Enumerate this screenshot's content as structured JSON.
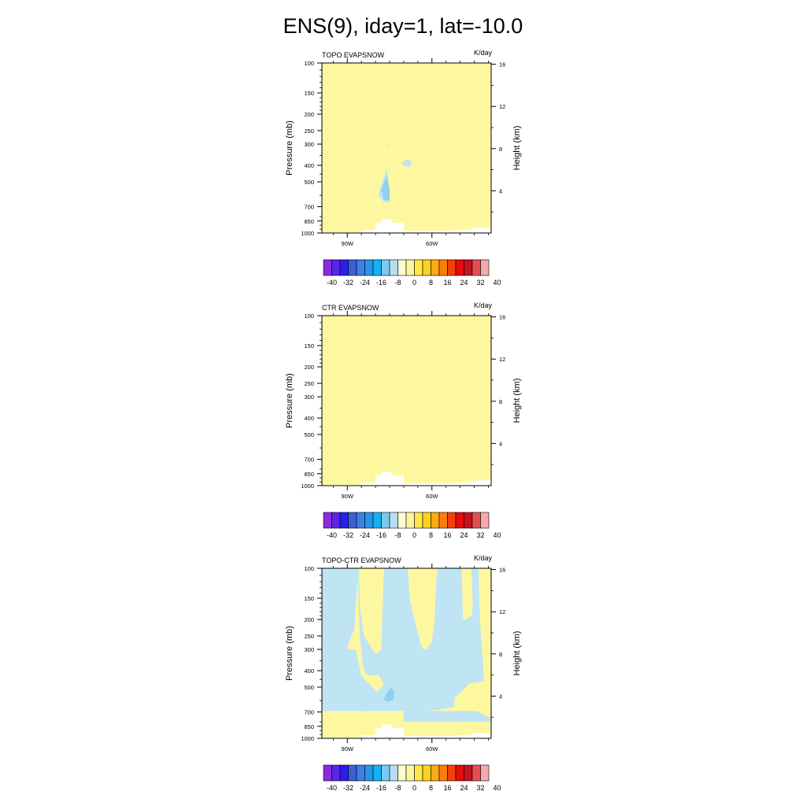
{
  "figure": {
    "title": "ENS(9), iday=1, lat=-10.0"
  },
  "colors": {
    "background": "#ffffff",
    "zero_fill": "#fdf8a0",
    "neg_small_fill": "#bfe4f4",
    "neg_med_fill": "#8fd0ee",
    "axis": "#000000"
  },
  "colorbar": {
    "colors": [
      "#8a2be2",
      "#5a25e8",
      "#2a1ef0",
      "#3c5fd8",
      "#3d80e6",
      "#2596ee",
      "#12b2f2",
      "#7ccaf0",
      "#b4dff2",
      "#fdfbd2",
      "#fdf4a0",
      "#fde84a",
      "#fdd11c",
      "#fdaa14",
      "#fb7d0c",
      "#f5400a",
      "#e40c0c",
      "#c8101e",
      "#e05050",
      "#f4aaaa"
    ],
    "tick_labels": [
      "-40",
      "-32",
      "-24",
      "-16",
      "-8",
      "0",
      "8",
      "16",
      "24",
      "32",
      "40"
    ]
  },
  "chart_data": [
    {
      "type": "heatmap",
      "title": "TOPO EVAPSNOW",
      "units": "K/day",
      "ylabel": "Pressure (mb)",
      "ylabel_right": "Height (km)",
      "x_tick_labels": [
        "90W",
        "60W"
      ],
      "x_ticks": [
        -95,
        -65
      ],
      "xlim": [
        -104,
        -44
      ],
      "y_tick_labels": [
        "100",
        "150",
        "200",
        "250",
        "300",
        "400",
        "500",
        "700",
        "850",
        "1000"
      ],
      "y_ticks": [
        100,
        150,
        200,
        250,
        300,
        400,
        500,
        700,
        850,
        1000
      ],
      "ylim": [
        1000,
        100
      ],
      "y_scale": "log",
      "right_tick_labels": [
        "4",
        "8",
        "12",
        "16"
      ],
      "right_ticks": [
        4,
        8,
        12,
        16
      ],
      "field": "0 K/day (pale yellow) nearly everywhere; small negative (-4 to 0) patches near 80W, 400-650 mb and near 74W, 380 mb",
      "regions": [
        {
          "level": "neg_small",
          "points": [
            [
              -81,
              420
            ],
            [
              -80,
              560
            ],
            [
              -80,
              660
            ],
            [
              -82,
              660
            ],
            [
              -84,
              600
            ],
            [
              -83,
              520
            ]
          ]
        },
        {
          "level": "neg_med",
          "points": [
            [
              -81,
              460
            ],
            [
              -80,
              560
            ],
            [
              -80,
              640
            ],
            [
              -82,
              640
            ],
            [
              -83,
              560
            ]
          ]
        },
        {
          "level": "neg_small",
          "points": [
            [
              -76,
              390
            ],
            [
              -74,
              370
            ],
            [
              -72,
              380
            ],
            [
              -73,
              410
            ],
            [
              -75,
              400
            ]
          ]
        },
        {
          "level": "neg_small",
          "points": [
            [
              -80.5,
              295
            ],
            [
              -79.8,
              300
            ],
            [
              -80.5,
              310
            ]
          ]
        }
      ],
      "terrain": [
        [
          -104,
          1000
        ],
        [
          -104,
          990
        ],
        [
          -90,
          990
        ],
        [
          -90,
          960
        ],
        [
          -85,
          960
        ],
        [
          -85,
          870
        ],
        [
          -83,
          870
        ],
        [
          -83,
          830
        ],
        [
          -79,
          830
        ],
        [
          -79,
          870
        ],
        [
          -75,
          870
        ],
        [
          -75,
          970
        ],
        [
          -57,
          970
        ],
        [
          -57,
          960
        ],
        [
          -51,
          960
        ],
        [
          -51,
          930
        ],
        [
          -44,
          930
        ],
        [
          -44,
          1000
        ]
      ]
    },
    {
      "type": "heatmap",
      "title": "CTR EVAPSNOW",
      "units": "K/day",
      "ylabel": "Pressure (mb)",
      "ylabel_right": "Height (km)",
      "x_tick_labels": [
        "90W",
        "60W"
      ],
      "x_ticks": [
        -95,
        -65
      ],
      "xlim": [
        -104,
        -44
      ],
      "y_tick_labels": [
        "100",
        "150",
        "200",
        "250",
        "300",
        "400",
        "500",
        "700",
        "850",
        "1000"
      ],
      "y_ticks": [
        100,
        150,
        200,
        250,
        300,
        400,
        500,
        700,
        850,
        1000
      ],
      "ylim": [
        1000,
        100
      ],
      "y_scale": "log",
      "right_tick_labels": [
        "4",
        "8",
        "12",
        "16"
      ],
      "right_ticks": [
        4,
        8,
        12,
        16
      ],
      "field": "0 K/day (pale yellow) everywhere",
      "regions": [],
      "terrain": [
        [
          -104,
          1000
        ],
        [
          -104,
          990
        ],
        [
          -90,
          990
        ],
        [
          -90,
          960
        ],
        [
          -85,
          960
        ],
        [
          -85,
          870
        ],
        [
          -83,
          870
        ],
        [
          -83,
          830
        ],
        [
          -79,
          830
        ],
        [
          -79,
          870
        ],
        [
          -75,
          870
        ],
        [
          -75,
          970
        ],
        [
          -57,
          970
        ],
        [
          -57,
          960
        ],
        [
          -51,
          960
        ],
        [
          -51,
          930
        ],
        [
          -44,
          930
        ],
        [
          -44,
          1000
        ]
      ]
    },
    {
      "type": "heatmap",
      "title": "TOPO-CTR EVAPSNOW",
      "units": "K/day",
      "ylabel": "Pressure (mb)",
      "ylabel_right": "Height (km)",
      "x_tick_labels": [
        "90W",
        "60W"
      ],
      "x_ticks": [
        -95,
        -65
      ],
      "xlim": [
        -104,
        -44
      ],
      "y_tick_labels": [
        "100",
        "150",
        "200",
        "250",
        "300",
        "400",
        "500",
        "700",
        "850",
        "1000"
      ],
      "y_ticks": [
        100,
        150,
        200,
        250,
        300,
        400,
        500,
        700,
        850,
        1000
      ],
      "ylim": [
        1000,
        100
      ],
      "y_scale": "log",
      "right_tick_labels": [
        "4",
        "8",
        "12",
        "16"
      ],
      "right_ticks": [
        4,
        8,
        12,
        16
      ],
      "field": "Mixed small negative (-4 to 0, light blue) and 0 (pale yellow) areas; strongest negative near 80W, 500-600 mb",
      "regions": [
        {
          "level": "neg_small",
          "points": [
            [
              -104,
              100
            ],
            [
              -91.5,
              100
            ],
            [
              -90.5,
              260
            ],
            [
              -89.5,
              370
            ],
            [
              -88.5,
              420
            ],
            [
              -86,
              430
            ],
            [
              -84,
              420
            ],
            [
              -82,
              480
            ],
            [
              -86,
              570
            ],
            [
              -84,
              650
            ],
            [
              -82,
              690
            ],
            [
              -79,
              690
            ],
            [
              -75,
              690
            ],
            [
              -66,
              690
            ],
            [
              -60,
              670
            ],
            [
              -57,
              650
            ],
            [
              -57,
              580
            ],
            [
              -54,
              520
            ],
            [
              -52,
              480
            ],
            [
              -50,
              470
            ],
            [
              -46.5,
              460
            ],
            [
              -47,
              340
            ],
            [
              -48,
              200
            ],
            [
              -48.5,
              100
            ],
            [
              -51,
              100
            ],
            [
              -50.5,
              170
            ],
            [
              -51,
              190
            ],
            [
              -53,
              200
            ],
            [
              -54,
              200
            ],
            [
              -54.5,
              100
            ],
            [
              -63,
              100
            ],
            [
              -63.5,
              120
            ],
            [
              -64,
              200
            ],
            [
              -65,
              270
            ],
            [
              -67,
              300
            ],
            [
              -68,
              300
            ],
            [
              -69,
              280
            ],
            [
              -73,
              150
            ],
            [
              -73.5,
              100
            ],
            [
              -82,
              100
            ],
            [
              -83,
              300
            ],
            [
              -85,
              320
            ],
            [
              -89,
              250
            ],
            [
              -90.5,
              170
            ],
            [
              -91,
              100
            ]
          ]
        },
        {
          "level": "neg_small",
          "points": [
            [
              -104,
              100
            ],
            [
              -91,
              100
            ],
            [
              -91.5,
              120
            ],
            [
              -92.5,
              230
            ],
            [
              -94,
              260
            ],
            [
              -95,
              300
            ],
            [
              -96,
              370
            ],
            [
              -96.5,
              450
            ],
            [
              -96.5,
              520
            ],
            [
              -94,
              620
            ],
            [
              -91,
              690
            ],
            [
              -89,
              690
            ],
            [
              -88,
              640
            ],
            [
              -91,
              560
            ],
            [
              -92,
              420
            ],
            [
              -96,
              400
            ],
            [
              -104,
              390
            ]
          ]
        },
        {
          "level": "neg_small",
          "points": [
            [
              -104,
              300
            ],
            [
              -92,
              300
            ],
            [
              -90,
              430
            ],
            [
              -85,
              520
            ],
            [
              -83,
              650
            ],
            [
              -82,
              690
            ],
            [
              -104,
              690
            ]
          ]
        },
        {
          "level": "neg_small",
          "points": [
            [
              -75,
              690
            ],
            [
              -49,
              690
            ],
            [
              -47,
              720
            ],
            [
              -44,
              760
            ],
            [
              -44,
              800
            ],
            [
              -75,
              800
            ]
          ]
        },
        {
          "level": "neg_med",
          "points": [
            [
              -79.5,
              500
            ],
            [
              -78.5,
              530
            ],
            [
              -78.5,
              590
            ],
            [
              -80.5,
              610
            ],
            [
              -82,
              590
            ],
            [
              -81,
              540
            ]
          ]
        }
      ],
      "terrain": [
        [
          -104,
          1000
        ],
        [
          -104,
          990
        ],
        [
          -90,
          990
        ],
        [
          -90,
          960
        ],
        [
          -85,
          960
        ],
        [
          -85,
          870
        ],
        [
          -83,
          870
        ],
        [
          -83,
          830
        ],
        [
          -79,
          830
        ],
        [
          -79,
          870
        ],
        [
          -75,
          870
        ],
        [
          -75,
          970
        ],
        [
          -57,
          970
        ],
        [
          -57,
          960
        ],
        [
          -51,
          960
        ],
        [
          -51,
          930
        ],
        [
          -44,
          930
        ],
        [
          -44,
          1000
        ]
      ]
    }
  ]
}
